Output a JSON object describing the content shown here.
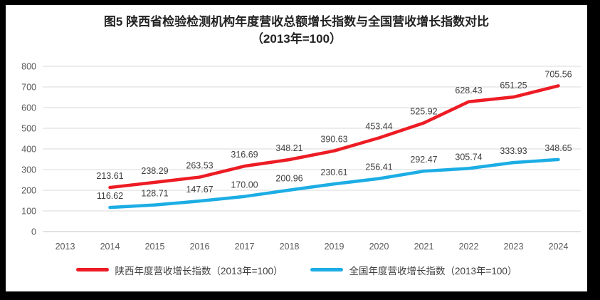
{
  "page": {
    "title_line1": "图5  陕西省检验检测机构年度营收总额增长指数与全国营收增长指数对比",
    "title_line2": "（2013年=100）"
  },
  "colors": {
    "shaanxi_red": "#ED1C24",
    "national_blue": "#1CADE4",
    "gridline": "#D9D9D9",
    "zero_line": "#C6C6C6",
    "axis_text": "#595959",
    "data_label_text": "#404040",
    "frame": "#000000"
  },
  "chart_data": {
    "type": "line",
    "title": "图5 陕西省检验检测机构年度营收总额增长指数与全国营收增长指数对比（2013年=100）",
    "categories": [
      "2013",
      "2014",
      "2015",
      "2016",
      "2017",
      "2018",
      "2019",
      "2020",
      "2021",
      "2022",
      "2023",
      "2024"
    ],
    "series": [
      {
        "name": "陕西年度营收增长指数（2013年=100）",
        "color": "#ED1C24",
        "values": [
          null,
          213.61,
          238.29,
          263.53,
          316.69,
          348.21,
          390.63,
          453.44,
          525.92,
          628.43,
          651.25,
          705.56
        ],
        "labels": [
          null,
          "213.61",
          "238.29",
          "263.53",
          "316.69",
          "348.21",
          "390.63",
          "453.44",
          "525.92",
          "628.43",
          "651.25",
          "705.56"
        ]
      },
      {
        "name": "全国年度营收增长指数（2013年=100）",
        "color": "#1CADE4",
        "values": [
          null,
          116.62,
          128.71,
          147.67,
          170.0,
          200.96,
          230.61,
          256.41,
          292.47,
          305.74,
          333.93,
          348.65
        ],
        "labels": [
          null,
          "116.62",
          "128.71",
          "147.67",
          "170.00",
          "200.96",
          "230.61",
          "256.41",
          "292.47",
          "305.74",
          "333.93",
          "348.65"
        ]
      }
    ],
    "xlabel": "",
    "ylabel": "",
    "ylim": [
      0,
      800
    ],
    "yticks": [
      0,
      100,
      200,
      300,
      400,
      500,
      600,
      700,
      800
    ],
    "grid": true,
    "legend_position": "bottom"
  }
}
